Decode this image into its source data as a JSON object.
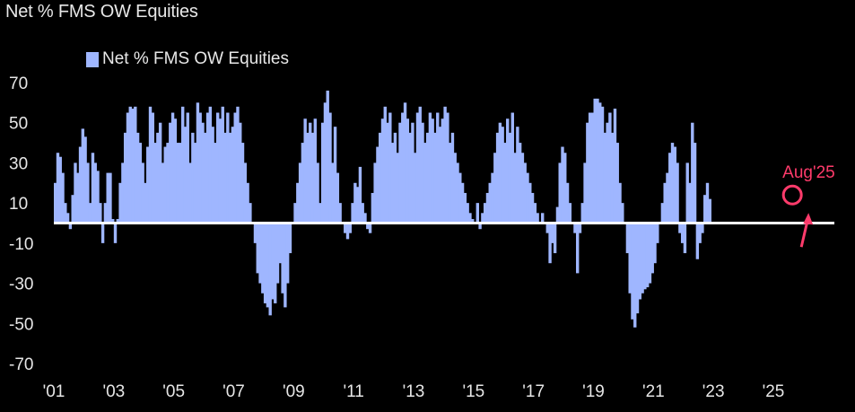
{
  "chart_data": {
    "type": "bar",
    "title": "Net % FMS OW Equities",
    "legend": [
      "Net % FMS OW Equities"
    ],
    "legend_position": "top-left",
    "grid": false,
    "ylim": [
      -70,
      70
    ],
    "yticks": [
      70,
      50,
      30,
      10,
      -10,
      -30,
      -50,
      -70
    ],
    "xtick_labels": [
      "'01",
      "'03",
      "'05",
      "'07",
      "'09",
      "'11",
      "'13",
      "'15",
      "'17",
      "'19",
      "'21",
      "'23",
      "'25"
    ],
    "x_range": [
      "2001-01",
      "2025-12"
    ],
    "annotation": {
      "label": "Aug'25",
      "x": "2025-08",
      "y": 14
    },
    "colors": {
      "bar": "#9fb6ff",
      "zero_line": "#ffffff",
      "annotation": "#ff3b6b",
      "background": "#000000"
    },
    "series": [
      {
        "name": "Net % FMS OW Equities",
        "start": "2001-01",
        "frequency": "monthly",
        "values": [
          20,
          35,
          33,
          25,
          10,
          5,
          -3,
          14,
          30,
          25,
          38,
          47,
          43,
          30,
          10,
          35,
          30,
          26,
          10,
          -10,
          10,
          25,
          25,
          2,
          -10,
          2,
          20,
          30,
          45,
          55,
          58,
          57,
          58,
          45,
          40,
          30,
          20,
          38,
          58,
          55,
          40,
          45,
          50,
          30,
          38,
          40,
          50,
          55,
          52,
          40,
          40,
          58,
          48,
          55,
          30,
          45,
          40,
          60,
          55,
          50,
          45,
          55,
          58,
          48,
          40,
          55,
          52,
          58,
          45,
          55,
          45,
          48,
          55,
          58,
          50,
          40,
          30,
          20,
          10,
          0,
          -10,
          -25,
          -30,
          -35,
          -40,
          -42,
          -46,
          -38,
          -40,
          -30,
          -20,
          -35,
          -42,
          -30,
          -15,
          0,
          10,
          20,
          30,
          40,
          52,
          45,
          50,
          45,
          52,
          30,
          10,
          50,
          60,
          66,
          55,
          30,
          48,
          25,
          10,
          0,
          -5,
          -8,
          -5,
          10,
          20,
          18,
          28,
          10,
          5,
          -3,
          -5,
          15,
          30,
          38,
          45,
          52,
          58,
          50,
          55,
          40,
          45,
          35,
          50,
          55,
          60,
          52,
          45,
          50,
          35,
          55,
          58,
          50,
          40,
          45,
          55,
          52,
          45,
          55,
          48,
          52,
          58,
          55,
          40,
          45,
          35,
          30,
          25,
          20,
          15,
          10,
          5,
          2,
          0,
          10,
          -3,
          5,
          10,
          15,
          20,
          25,
          35,
          45,
          50,
          48,
          40,
          52,
          45,
          55,
          35,
          48,
          40,
          35,
          30,
          25,
          20,
          15,
          10,
          5,
          0,
          5,
          0,
          -5,
          -20,
          -10,
          -15,
          8,
          30,
          38,
          35,
          20,
          10,
          0,
          -5,
          -25,
          -5,
          10,
          30,
          50,
          55,
          55,
          62,
          62,
          60,
          58,
          45,
          50,
          55,
          45,
          57,
          40,
          20,
          10,
          0,
          -15,
          -35,
          -48,
          -52,
          -45,
          -38,
          -35,
          -33,
          -32,
          -30,
          -25,
          -20,
          -10,
          0,
          10,
          20,
          25,
          35,
          40,
          38,
          30,
          -5,
          -10,
          -15,
          30,
          20,
          50,
          40,
          -18,
          -10,
          -5,
          14,
          20,
          12
        ]
      }
    ]
  }
}
